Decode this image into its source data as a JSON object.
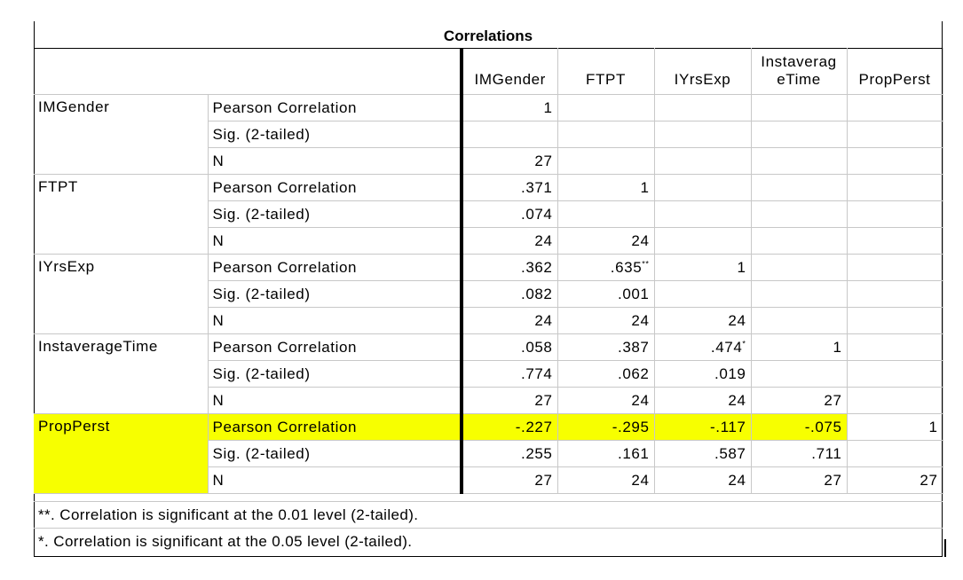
{
  "title": "Correlations",
  "columns": [
    "IMGender",
    "FTPT",
    "IYrsExp",
    "Instaverag eTime",
    "PropPerst"
  ],
  "stat_labels": [
    "Pearson Correlation",
    "Sig. (2-tailed)",
    "N"
  ],
  "rows": [
    {
      "var": "IMGender",
      "r": [
        "1",
        "",
        "",
        "",
        ""
      ],
      "sig": [
        "",
        "",
        "",
        "",
        ""
      ],
      "n": [
        "27",
        "",
        "",
        "",
        ""
      ]
    },
    {
      "var": "FTPT",
      "r": [
        ".371",
        "1",
        "",
        "",
        ""
      ],
      "sig": [
        ".074",
        "",
        "",
        "",
        ""
      ],
      "n": [
        "24",
        "24",
        "",
        "",
        ""
      ]
    },
    {
      "var": "IYrsExp",
      "r": [
        ".362",
        ".635**",
        "1",
        "",
        ""
      ],
      "sig": [
        ".082",
        ".001",
        "",
        "",
        ""
      ],
      "n": [
        "24",
        "24",
        "24",
        "",
        ""
      ]
    },
    {
      "var": "InstaverageTime",
      "r": [
        ".058",
        ".387",
        ".474*",
        "1",
        ""
      ],
      "sig": [
        ".774",
        ".062",
        ".019",
        "",
        ""
      ],
      "n": [
        "27",
        "24",
        "24",
        "27",
        ""
      ]
    },
    {
      "var": "PropPerst",
      "r": [
        "-.227",
        "-.295",
        "-.117",
        "-.075",
        "1"
      ],
      "sig": [
        ".255",
        ".161",
        ".587",
        ".711",
        ""
      ],
      "n": [
        "27",
        "24",
        "24",
        "27",
        "27"
      ]
    }
  ],
  "highlight_color": "#f7ff00",
  "footnotes": [
    "**. Correlation is significant at the 0.01 level (2-tailed).",
    "*. Correlation is significant at the 0.05 level (2-tailed)."
  ]
}
